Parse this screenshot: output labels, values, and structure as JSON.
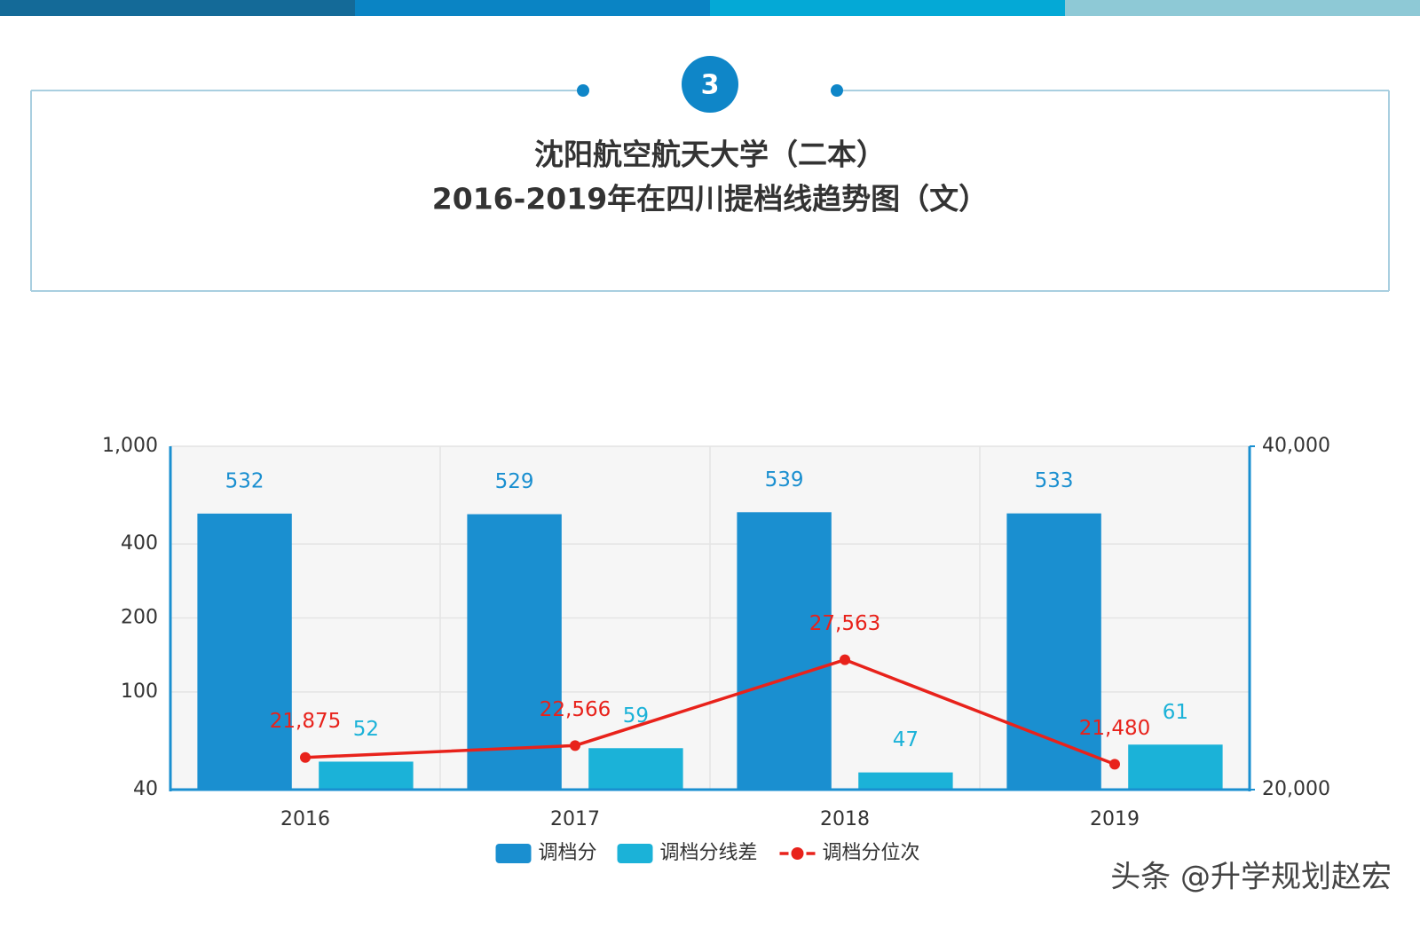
{
  "header": {
    "badge": "3",
    "title_line1": "沈阳航空航天大学（二本）",
    "title_line2": "2016-2019年在四川提档线趋势图（文）"
  },
  "chart_data": {
    "type": "bar",
    "categories": [
      "2016",
      "2017",
      "2018",
      "2019"
    ],
    "yscale": "log",
    "ylim": [
      40,
      1000
    ],
    "yticks": [
      40,
      100,
      200,
      400,
      {
        "value": 1000,
        "label": "1,000"
      }
    ],
    "y2lim": [
      20000,
      40000
    ],
    "y2ticks": [
      {
        "value": 20000,
        "label": "20,000"
      },
      {
        "value": 40000,
        "label": "40,000"
      }
    ],
    "grid": true,
    "legend": "bottom",
    "series": [
      {
        "name": "调档分",
        "color": "#1a8fd0",
        "type": "bar",
        "values": [
          532,
          529,
          539,
          533
        ]
      },
      {
        "name": "调档分线差",
        "color": "#1bb2d8",
        "type": "bar",
        "values": [
          52,
          59,
          47,
          61
        ]
      },
      {
        "name": "调档分位次",
        "color": "#e8221b",
        "type": "line",
        "axis": "y2",
        "values": [
          21875,
          22566,
          27563,
          21480
        ],
        "value_labels": [
          "21,875",
          "22,566",
          "27,563",
          "21,480"
        ]
      }
    ]
  },
  "watermark": "头条 @升学规划赵宏"
}
